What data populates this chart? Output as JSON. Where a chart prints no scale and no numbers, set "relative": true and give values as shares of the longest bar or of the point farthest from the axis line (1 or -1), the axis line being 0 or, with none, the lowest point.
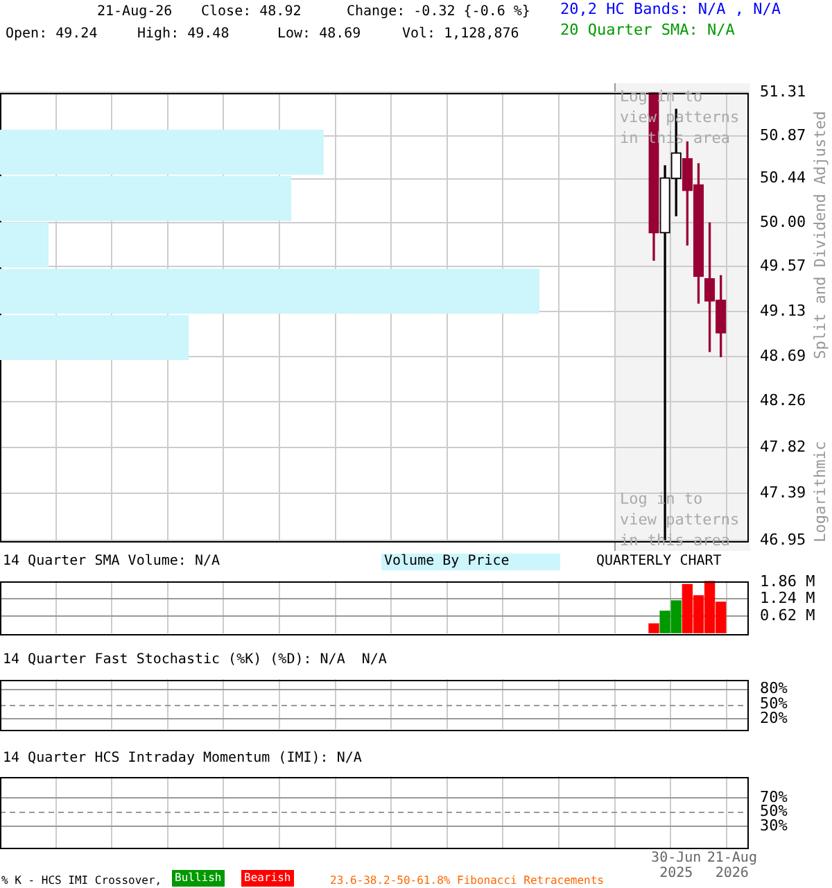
{
  "chart_data": [
    {
      "type": "candlestick",
      "log": true,
      "grid": true,
      "tick_labels": "y",
      "categories": [
        null,
        null,
        null,
        null,
        null,
        null,
        null,
        null,
        null,
        null,
        null,
        null,
        null,
        null,
        null,
        null,
        null,
        null,
        null,
        null,
        null,
        null,
        null,
        null,
        null,
        null,
        null,
        null,
        null,
        null,
        null,
        null,
        null,
        null,
        null,
        null,
        null,
        null,
        null,
        null,
        null,
        null,
        null,
        null,
        null,
        null,
        null,
        null,
        null,
        null,
        null,
        null,
        null,
        null,
        null,
        null,
        null,
        null,
        null,
        null,
        null,
        null,
        null,
        null,
        null,
        null,
        null
      ],
      "ohlc": [
        null,
        null,
        null,
        null,
        null,
        null,
        null,
        null,
        null,
        null,
        null,
        null,
        null,
        null,
        null,
        null,
        null,
        null,
        null,
        null,
        null,
        null,
        null,
        null,
        null,
        null,
        null,
        null,
        null,
        null,
        null,
        null,
        null,
        null,
        null,
        null,
        null,
        null,
        null,
        null,
        null,
        null,
        null,
        null,
        null,
        null,
        null,
        null,
        null,
        null,
        null,
        null,
        null,
        null,
        null,
        null,
        null,
        null,
        [
          51.31,
          51.31,
          49.63,
          49.9
        ],
        [
          49.9,
          50.57,
          46.95,
          50.45
        ],
        [
          50.44,
          51.14,
          50.07,
          50.7
        ],
        [
          50.64,
          50.81,
          49.78,
          50.32
        ],
        [
          50.38,
          50.59,
          49.21,
          49.47
        ],
        [
          49.45,
          50.0,
          48.74,
          49.23
        ],
        [
          49.24,
          49.48,
          48.69,
          48.92
        ],
        null,
        null
      ],
      "colors": [
        null,
        null,
        null,
        null,
        null,
        null,
        null,
        null,
        null,
        null,
        null,
        null,
        null,
        null,
        null,
        null,
        null,
        null,
        null,
        null,
        null,
        null,
        null,
        null,
        null,
        null,
        null,
        null,
        null,
        null,
        null,
        null,
        null,
        null,
        null,
        null,
        null,
        null,
        null,
        null,
        null,
        null,
        null,
        null,
        null,
        null,
        null,
        null,
        null,
        null,
        null,
        null,
        null,
        null,
        null,
        null,
        null,
        null,
        "#990033",
        "#000000",
        "#000000",
        "#990033",
        "#990033",
        "#990033",
        "#990033",
        null,
        null
      ],
      "ylim": [
        46.95,
        51.31
      ],
      "yticks": [
        46.95,
        47.39,
        47.82,
        48.26,
        48.69,
        49.13,
        49.57,
        {
          "value": 50,
          "label": "50.00"
        },
        50.44,
        50.87,
        51.31
      ],
      "annotations": [
        "21-Aug-26",
        "Close: 48.92",
        "Change: -0.32 {-0.6 %}",
        "Open: 49.24",
        "High: 49.48",
        "Low: 48.69",
        "Vol: 1,128,876",
        "20,2 HC Bands: N/A , N/A",
        "20 Quarter SMA: N/A",
        "Log in to view patterns in this area",
        "Log in to view patterns in this area",
        "Split and Dividend Adjusted",
        "Logarithmic"
      ]
    },
    {
      "type": "bar",
      "orientation": "horizontal",
      "relative": true,
      "title": "Volume By Price",
      "color": "#ccf5fc",
      "categories": [
        null,
        null,
        null,
        null,
        null
      ],
      "values": [
        0.6,
        0.54,
        0.09,
        1,
        0.35
      ]
    },
    {
      "type": "bar",
      "grid": true,
      "tick_labels": "y",
      "title": "14 Quarter SMA Volume: N/A",
      "categories": [
        null,
        null,
        null,
        null,
        null,
        null,
        null,
        null,
        null,
        null,
        null,
        null,
        null,
        null,
        null,
        null,
        null,
        null,
        null,
        null,
        null,
        null,
        null,
        null,
        null,
        null,
        null,
        null,
        null,
        null,
        null,
        null,
        null,
        null,
        null,
        null,
        null,
        null,
        null,
        null,
        null,
        null,
        null,
        null,
        null,
        null,
        null,
        null,
        null,
        null,
        null,
        null,
        null,
        null,
        null,
        null,
        null,
        null,
        null,
        null,
        null,
        null,
        null,
        null,
        null,
        null,
        null
      ],
      "values": [
        null,
        null,
        null,
        null,
        null,
        null,
        null,
        null,
        null,
        null,
        null,
        null,
        null,
        null,
        null,
        null,
        null,
        null,
        null,
        null,
        null,
        null,
        null,
        null,
        null,
        null,
        null,
        null,
        null,
        null,
        null,
        null,
        null,
        null,
        null,
        null,
        null,
        null,
        null,
        null,
        null,
        null,
        null,
        null,
        null,
        null,
        null,
        null,
        null,
        null,
        null,
        null,
        null,
        null,
        null,
        null,
        null,
        null,
        0.34,
        0.8,
        1.18,
        1.77,
        1.36,
        1.88,
        1.13,
        null,
        null
      ],
      "colors": [
        null,
        null,
        null,
        null,
        null,
        null,
        null,
        null,
        null,
        null,
        null,
        null,
        null,
        null,
        null,
        null,
        null,
        null,
        null,
        null,
        null,
        null,
        null,
        null,
        null,
        null,
        null,
        null,
        null,
        null,
        null,
        null,
        null,
        null,
        null,
        null,
        null,
        null,
        null,
        null,
        null,
        null,
        null,
        null,
        null,
        null,
        null,
        null,
        null,
        null,
        null,
        null,
        null,
        null,
        null,
        null,
        null,
        null,
        "#ff0000",
        "#009900",
        "#009900",
        "#ff0000",
        "#ff0000",
        "#ff0000",
        "#ff0000",
        null,
        null
      ],
      "ylim": [
        0,
        1.9
      ],
      "yticks": [
        {
          "value": 0.62,
          "label": "0.62 M"
        },
        {
          "value": 1.24,
          "label": "1.24 M"
        },
        {
          "value": 1.86,
          "label": "1.86 M"
        }
      ],
      "annotations": [
        "QUARTERLY CHART"
      ]
    },
    {
      "type": "line",
      "grid": true,
      "tick_labels": "y",
      "title": "14 Quarter Fast Stochastic (%K) (%D): N/A  N/A",
      "categories": [
        null,
        null,
        null,
        null,
        null,
        null,
        null,
        null,
        null,
        null,
        null,
        null,
        null,
        null,
        null,
        null,
        null,
        null,
        null,
        null,
        null,
        null,
        null,
        null,
        null,
        null,
        null,
        null,
        null,
        null,
        null,
        null,
        null,
        null,
        null,
        null,
        null,
        null,
        null,
        null,
        null,
        null,
        null,
        null,
        null,
        null,
        null,
        null,
        null,
        null,
        null,
        null,
        null,
        null,
        null,
        null,
        null,
        null,
        null,
        null,
        null,
        null,
        null,
        null,
        null,
        null,
        null
      ],
      "values": [
        null,
        null,
        null,
        null,
        null,
        null,
        null,
        null,
        null,
        null,
        null,
        null,
        null,
        null,
        null,
        null,
        null,
        null,
        null,
        null,
        null,
        null,
        null,
        null,
        null,
        null,
        null,
        null,
        null,
        null,
        null,
        null,
        null,
        null,
        null,
        null,
        null,
        null,
        null,
        null,
        null,
        null,
        null,
        null,
        null,
        null,
        null,
        null,
        null,
        null,
        null,
        null,
        null,
        null,
        null,
        null,
        null,
        null,
        null,
        null,
        null,
        null,
        null,
        null,
        null,
        null,
        null
      ],
      "ylim": [
        0,
        100
      ],
      "yticks": [
        {
          "value": 20,
          "label": "20%"
        },
        {
          "value": 50,
          "label": "50%"
        },
        {
          "value": 80,
          "label": "80%"
        }
      ],
      "ref_lines": [
        {
          "axis": "y",
          "value": 50,
          "line_style": "dashed"
        }
      ]
    },
    {
      "type": "line",
      "grid": true,
      "title": "14 Quarter HCS Intraday Momentum (IMI): N/A",
      "categories": [
        null,
        null,
        null,
        null,
        null,
        null,
        null,
        null,
        null,
        null,
        null,
        null,
        null,
        null,
        null,
        null,
        null,
        null,
        null,
        null,
        null,
        null,
        null,
        null,
        null,
        null,
        null,
        null,
        null,
        null,
        null,
        null,
        null,
        null,
        null,
        null,
        null,
        null,
        null,
        null,
        null,
        null,
        null,
        null,
        null,
        null,
        null,
        null,
        null,
        null,
        null,
        null,
        null,
        null,
        null,
        null,
        null,
        null,
        null,
        null,
        "30-Jun 2025",
        null,
        null,
        null,
        null,
        "21-Aug 2026",
        null
      ],
      "values": [
        null,
        null,
        null,
        null,
        null,
        null,
        null,
        null,
        null,
        null,
        null,
        null,
        null,
        null,
        null,
        null,
        null,
        null,
        null,
        null,
        null,
        null,
        null,
        null,
        null,
        null,
        null,
        null,
        null,
        null,
        null,
        null,
        null,
        null,
        null,
        null,
        null,
        null,
        null,
        null,
        null,
        null,
        null,
        null,
        null,
        null,
        null,
        null,
        null,
        null,
        null,
        null,
        null,
        null,
        null,
        null,
        null,
        null,
        null,
        null,
        null,
        null,
        null,
        null,
        null,
        null,
        null
      ],
      "ylim": [
        0,
        100
      ],
      "yticks": [
        {
          "value": 30,
          "label": "30%"
        },
        {
          "value": 50,
          "label": "50%"
        },
        {
          "value": 70,
          "label": "70%"
        }
      ],
      "ref_lines": [
        {
          "axis": "y",
          "value": 50,
          "line_style": "dashed"
        }
      ],
      "annotations": [
        "% K - HCS IMI Crossover,",
        "Bullish",
        "Bearish",
        "23.6-38.2-50-61.8% Fibonacci Retracements"
      ]
    }
  ]
}
